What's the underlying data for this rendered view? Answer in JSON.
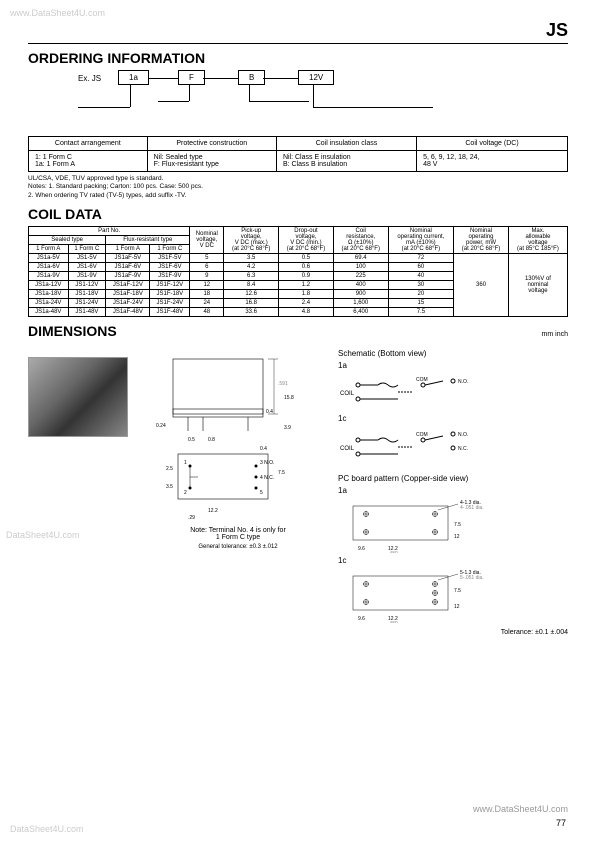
{
  "watermarks": {
    "tl": "www.DataSheet4U.com",
    "ml": "DataSheet4U.com",
    "bl": "DataSheet4U.com",
    "br": "www.DataSheet4U.com"
  },
  "page_num": "77",
  "header": "JS",
  "sections": {
    "ordering": "ORDERING INFORMATION",
    "coil": "COIL DATA",
    "dim": "DIMENSIONS"
  },
  "ordering_diagram": {
    "prefix": "Ex. JS",
    "boxes": [
      "1a",
      "F",
      "B",
      "12V"
    ]
  },
  "ordering_tbl": {
    "headers": [
      "Contact arrangement",
      "Protective construction",
      "Coil insulation class",
      "Coil voltage (DC)"
    ],
    "rows": [
      [
        "1: 1 Form C\n1a: 1 Form A",
        "Nil: Sealed type\nF: Flux-resistant type",
        "Nil: Class E insulation\nB: Class B insulation",
        "5, 6, 9, 12, 18, 24,\n48 V"
      ]
    ]
  },
  "notes": "UL/CSA, VDE, TUV approved type is standard.\nNotes: 1. Standard packing; Carton: 100 pcs. Case: 500 pcs.\n           2. When ordering TV rated (TV-5) types, add suffix -TV.",
  "coil_headers": {
    "partno": "Part No.",
    "sealed": "Sealed type",
    "flux": "Flux-resistant type",
    "fa": "1 Form A",
    "fc": "1 Form C",
    "nominal_v": "Nominal\nvoltage,\nV DC",
    "pickup": "Pick-up\nvoltage,\nV DC (max.)\n(at 20°C 68°F)",
    "dropout": "Drop-out\nvoltage,\nV DC (min.)\n(at 20°C 68°F)",
    "resist": "Coil\nresistance,\nΩ (±10%)\n(at 20°C 68°F)",
    "current": "Nominal\noperating current,\nmA (±10%)\n(at 20°C 68°F)",
    "power": "Nominal\noperating\npower, mW\n(at 20°C 68°F)",
    "max_v": "Max.\nallowable\nvoltage\n(at 85°C 185°F)"
  },
  "coil_rows": [
    [
      "JS1a-5V",
      "JS1-5V",
      "JS1aF-5V",
      "JS1F-5V",
      "5",
      "3.5",
      "0.5",
      "69.4",
      "72"
    ],
    [
      "JS1a-6V",
      "JS1-6V",
      "JS1aF-6V",
      "JS1F-6V",
      "6",
      "4.2",
      "0.6",
      "100",
      "60"
    ],
    [
      "JS1a-9V",
      "JS1-9V",
      "JS1aF-9V",
      "JS1F-9V",
      "9",
      "6.3",
      "0.9",
      "225",
      "40"
    ],
    [
      "JS1a-12V",
      "JS1-12V",
      "JS1aF-12V",
      "JS1F-12V",
      "12",
      "8.4",
      "1.2",
      "400",
      "30"
    ],
    [
      "JS1a-18V",
      "JS1-18V",
      "JS1aF-18V",
      "JS1F-18V",
      "18",
      "12.6",
      "1.8",
      "900",
      "20"
    ],
    [
      "JS1a-24V",
      "JS1-24V",
      "JS1aF-24V",
      "JS1F-24V",
      "24",
      "16.8",
      "2.4",
      "1,600",
      "15"
    ],
    [
      "JS1a-48V",
      "JS1-48V",
      "JS1aF-48V",
      "JS1F-48V",
      "48",
      "33.6",
      "4.8",
      "6,400",
      "7.5"
    ]
  ],
  "coil_power": "360",
  "coil_maxv": "130%V of\nnominal\nvoltage",
  "unit_label": "mm inch",
  "dim": {
    "terminal_note": "Note: Terminal No. 4 is only for\n1 Form C type",
    "gen_tol": "General tolerance: ±0.3 ±.012",
    "schematic_title": "Schematic (Bottom view)",
    "pcb_title": "PC board pattern (Copper-side view)",
    "l1a": "1a",
    "l1c": "1c",
    "coil_lbl": "COIL",
    "com_lbl": "COM",
    "no_lbl": "N.O.",
    "nc_lbl": "N.C.",
    "hole1": "4-1.3 dia.\n4-.051 dia.",
    "hole2": "5-1.3 dia.\n5-.051 dia.",
    "tolerance": "Tolerance: ±0.1 ±.004",
    "dims": {
      "d15": "15\n.591",
      "d04": "0.4\n.016",
      "d15_8": "15.8\n.622",
      "d39": "3.9\n.154",
      "d024": "0.24\n.009",
      "d05": "0.5\n.020",
      "d08": "0.8\n.031",
      "d25": "2.5\n.098",
      "d122": "12.2\n.480",
      "d35": "3.5\n.138",
      "d75": "7.5\n.295",
      "d12": "12\n.472",
      "d96": "9.6\n.378"
    }
  }
}
